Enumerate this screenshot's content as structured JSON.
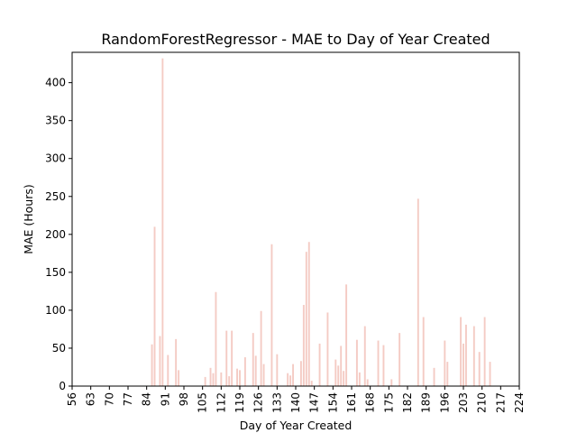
{
  "chart_data": {
    "type": "bar",
    "title": "RandomForestRegressor - MAE to Day of Year Created",
    "xlabel": "Day of Year Created",
    "ylabel": "MAE (Hours)",
    "xlim": [
      56,
      224
    ],
    "ylim": [
      0,
      440
    ],
    "x_ticks": [
      "56",
      "63",
      "70",
      "77",
      "84",
      "91",
      "98",
      "105",
      "112",
      "119",
      "126",
      "133",
      "140",
      "147",
      "154",
      "161",
      "168",
      "175",
      "182",
      "189",
      "196",
      "203",
      "210",
      "217",
      "224"
    ],
    "y_ticks": [
      "0",
      "50",
      "100",
      "150",
      "200",
      "250",
      "300",
      "350",
      "400"
    ],
    "grid": false,
    "bar_color": "#f4cbc4",
    "points": [
      {
        "x": 86,
        "y": 55
      },
      {
        "x": 87,
        "y": 210
      },
      {
        "x": 89,
        "y": 66
      },
      {
        "x": 90,
        "y": 432
      },
      {
        "x": 92,
        "y": 41
      },
      {
        "x": 95,
        "y": 62
      },
      {
        "x": 96,
        "y": 21
      },
      {
        "x": 106,
        "y": 12
      },
      {
        "x": 108,
        "y": 24
      },
      {
        "x": 109,
        "y": 17
      },
      {
        "x": 110,
        "y": 124
      },
      {
        "x": 112,
        "y": 18
      },
      {
        "x": 114,
        "y": 73
      },
      {
        "x": 115,
        "y": 13
      },
      {
        "x": 116,
        "y": 73
      },
      {
        "x": 118,
        "y": 23
      },
      {
        "x": 119,
        "y": 21
      },
      {
        "x": 121,
        "y": 38
      },
      {
        "x": 124,
        "y": 70
      },
      {
        "x": 125,
        "y": 40
      },
      {
        "x": 127,
        "y": 99
      },
      {
        "x": 128,
        "y": 29
      },
      {
        "x": 131,
        "y": 187
      },
      {
        "x": 133,
        "y": 42
      },
      {
        "x": 137,
        "y": 17
      },
      {
        "x": 138,
        "y": 14
      },
      {
        "x": 139,
        "y": 29
      },
      {
        "x": 142,
        "y": 33
      },
      {
        "x": 143,
        "y": 107
      },
      {
        "x": 144,
        "y": 177
      },
      {
        "x": 145,
        "y": 190
      },
      {
        "x": 146,
        "y": 7
      },
      {
        "x": 149,
        "y": 56
      },
      {
        "x": 152,
        "y": 97
      },
      {
        "x": 155,
        "y": 35
      },
      {
        "x": 156,
        "y": 27
      },
      {
        "x": 157,
        "y": 53
      },
      {
        "x": 158,
        "y": 20
      },
      {
        "x": 159,
        "y": 134
      },
      {
        "x": 163,
        "y": 61
      },
      {
        "x": 164,
        "y": 18
      },
      {
        "x": 166,
        "y": 79
      },
      {
        "x": 167,
        "y": 9
      },
      {
        "x": 171,
        "y": 60
      },
      {
        "x": 173,
        "y": 54
      },
      {
        "x": 176,
        "y": 9
      },
      {
        "x": 179,
        "y": 70
      },
      {
        "x": 186,
        "y": 247
      },
      {
        "x": 188,
        "y": 91
      },
      {
        "x": 192,
        "y": 24
      },
      {
        "x": 196,
        "y": 60
      },
      {
        "x": 197,
        "y": 32
      },
      {
        "x": 202,
        "y": 91
      },
      {
        "x": 203,
        "y": 56
      },
      {
        "x": 204,
        "y": 81
      },
      {
        "x": 207,
        "y": 79
      },
      {
        "x": 209,
        "y": 45
      },
      {
        "x": 211,
        "y": 91
      },
      {
        "x": 213,
        "y": 32
      }
    ]
  }
}
